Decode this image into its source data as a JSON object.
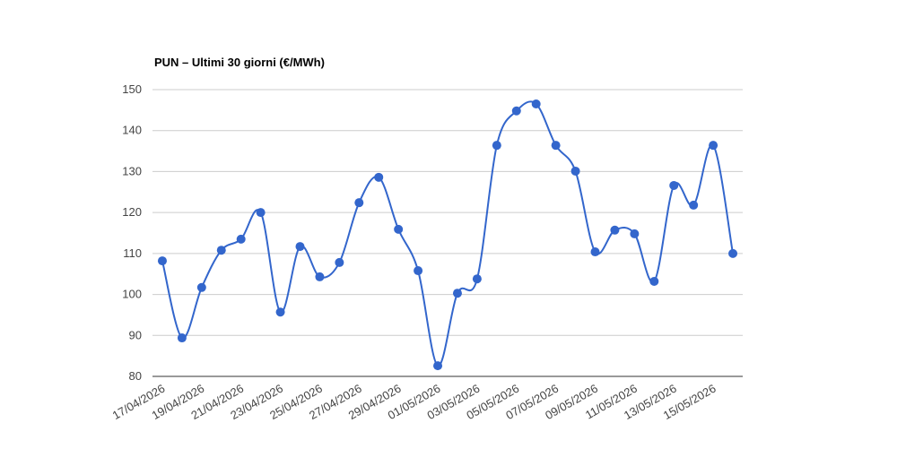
{
  "chart_data": {
    "type": "line",
    "title": "PUN – Ultimi 30 giorni (€/MWh)",
    "categories": [
      "17/04/2026",
      null,
      "19/04/2026",
      null,
      "21/04/2026",
      null,
      "23/04/2026",
      null,
      "25/04/2026",
      null,
      "27/04/2026",
      null,
      "29/04/2026",
      null,
      "01/05/2026",
      null,
      "03/05/2026",
      null,
      "05/05/2026",
      null,
      "07/05/2026",
      null,
      "09/05/2026",
      null,
      "11/05/2026",
      null,
      "13/05/2026",
      null,
      "15/05/2026",
      null
    ],
    "values": [
      108.2,
      89.4,
      101.7,
      110.8,
      113.5,
      120.0,
      95.7,
      111.7,
      104.3,
      107.8,
      122.4,
      128.6,
      115.9,
      105.8,
      82.6,
      100.3,
      103.8,
      136.4,
      144.8,
      146.5,
      136.4,
      130.1,
      110.4,
      115.7,
      114.8,
      103.2,
      126.6,
      121.8,
      136.4,
      110.0
    ],
    "color": "#3366cc",
    "ylim": [
      80,
      150
    ],
    "yticks": [
      80,
      90,
      100,
      110,
      120,
      130,
      140,
      150
    ],
    "grid": true
  }
}
